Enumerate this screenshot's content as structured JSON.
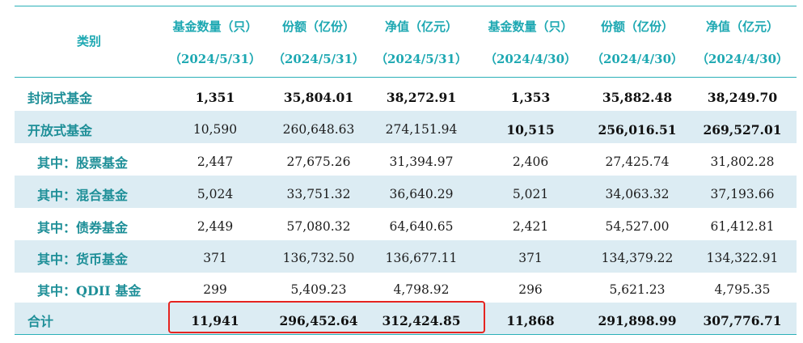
{
  "header": {
    "category": "类别",
    "columns": [
      {
        "title": "基金数量（只）",
        "date": "（2024/5/31）"
      },
      {
        "title": "份额（亿份）",
        "date": "（2024/5/31）"
      },
      {
        "title": "净值（亿元）",
        "date": "（2024/5/31）"
      },
      {
        "title": "基金数量（只）",
        "date": "（2024/4/30）"
      },
      {
        "title": "份额（亿份）",
        "date": "（2024/4/30）"
      },
      {
        "title": "净值（亿元）",
        "date": "（2024/4/30）"
      }
    ]
  },
  "rows": [
    {
      "label": "封闭式基金",
      "values": [
        "1,351",
        "35,804.01",
        "38,272.91",
        "1,353",
        "35,882.48",
        "38,249.70"
      ]
    },
    {
      "label": "开放式基金",
      "values": [
        "10,590",
        "260,648.63",
        "274,151.94",
        "10,515",
        "256,016.51",
        "269,527.01"
      ]
    },
    {
      "label": "其中：股票基金",
      "values": [
        "2,447",
        "27,675.26",
        "31,394.97",
        "2,406",
        "27,425.74",
        "31,802.28"
      ]
    },
    {
      "label": "其中：混合基金",
      "values": [
        "5,024",
        "33,751.32",
        "36,640.29",
        "5,021",
        "34,063.32",
        "37,193.66"
      ]
    },
    {
      "label": "其中：债券基金",
      "values": [
        "2,449",
        "57,080.32",
        "64,640.65",
        "2,421",
        "54,527.00",
        "61,412.81"
      ]
    },
    {
      "label": "其中：货币基金",
      "values": [
        "371",
        "136,732.50",
        "136,677.11",
        "371",
        "134,379.22",
        "134,322.91"
      ]
    },
    {
      "label": "其中：QDII 基金",
      "values": [
        "299",
        "5,409.23",
        "4,798.92",
        "296",
        "5,621.23",
        "4,795.35"
      ]
    },
    {
      "label": "合计",
      "values": [
        "11,941",
        "296,452.64",
        "312,424.85",
        "11,868",
        "291,898.99",
        "307,776.71"
      ]
    }
  ],
  "colors": {
    "accent": "#1da8b2",
    "band": "#dcecf3",
    "highlight": "#e52420"
  }
}
